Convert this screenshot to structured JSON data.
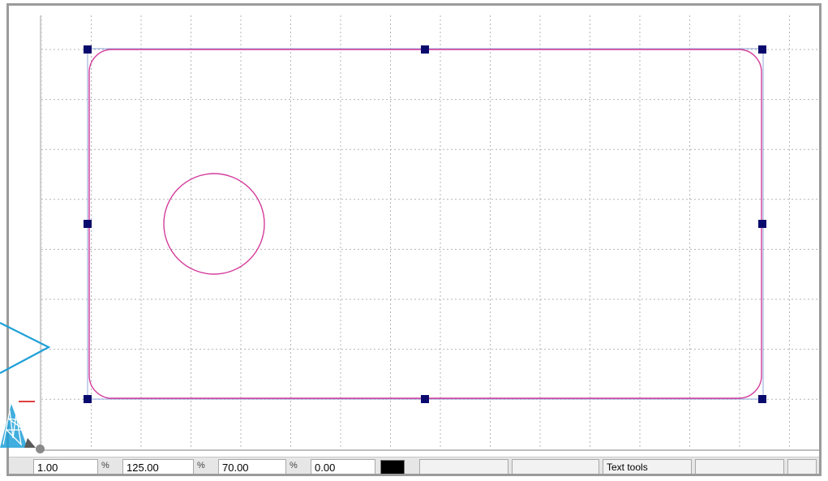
{
  "canvas": {
    "selection_handle_color": "#0a0a6e",
    "shape_stroke_color": "#d43c9c",
    "grid_color": "#b4b4b4",
    "shapes": [
      {
        "kind": "rounded-rectangle",
        "selected": true
      },
      {
        "kind": "circle",
        "selected": false
      }
    ]
  },
  "statusbar": {
    "fields": [
      {
        "value": "1.00",
        "unit": "%"
      },
      {
        "value": "125.00",
        "unit": "%"
      },
      {
        "value": "70.00",
        "unit": "%"
      },
      {
        "value": "0.00",
        "unit": ""
      }
    ],
    "line_color": "#000000",
    "panels": [
      "",
      "",
      "Text tools",
      "",
      ""
    ]
  },
  "annotation": {
    "callout_icon": "arrow-pointer-icon",
    "mascot_icon": "triangle-scribble-icon",
    "accent": "#1ea0d8"
  }
}
